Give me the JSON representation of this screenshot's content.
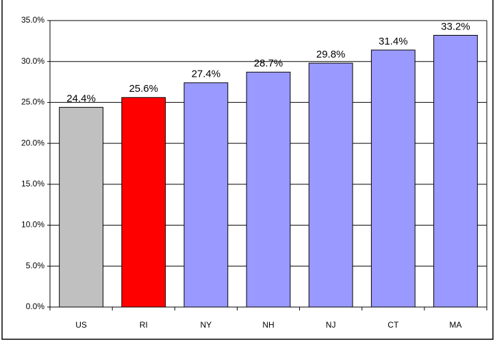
{
  "chart_data": {
    "type": "bar",
    "categories": [
      "US",
      "RI",
      "NY",
      "NH",
      "NJ",
      "CT",
      "MA"
    ],
    "values": [
      24.4,
      25.6,
      27.4,
      28.7,
      29.8,
      31.4,
      33.2
    ],
    "value_labels": [
      "24.4%",
      "25.6%",
      "27.4%",
      "28.7%",
      "29.8%",
      "31.4%",
      "33.2%"
    ],
    "colors": [
      "#c0c0c0",
      "#ff0000",
      "#9999ff",
      "#9999ff",
      "#9999ff",
      "#9999ff",
      "#9999ff"
    ],
    "ylim": [
      0,
      35
    ],
    "yticks": [
      {
        "value": 0,
        "label": "0.0%"
      },
      {
        "value": 5,
        "label": "5.0%"
      },
      {
        "value": 10,
        "label": "10.0%"
      },
      {
        "value": 15,
        "label": "15.0%"
      },
      {
        "value": 20,
        "label": "20.0%"
      },
      {
        "value": 25,
        "label": "25.0%"
      },
      {
        "value": 30,
        "label": "30.0%"
      },
      {
        "value": 35,
        "label": "35.0%"
      }
    ],
    "grid": true
  }
}
